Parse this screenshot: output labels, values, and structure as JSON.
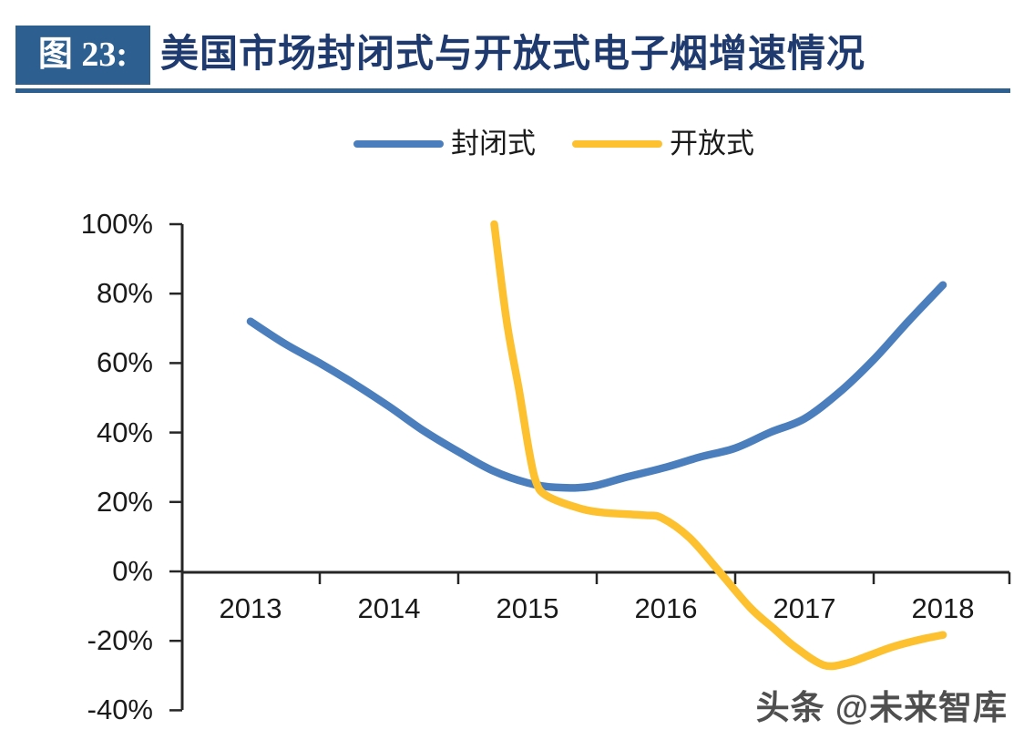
{
  "header": {
    "figure_label": "图 23:",
    "title": "美国市场封闭式与开放式电子烟增速情况"
  },
  "watermark": "头条 @未来智库",
  "colors": {
    "header_blue": "#2d6090",
    "title_text": "#1e3a6e",
    "axis": "#262626",
    "closed_series": "#4b7ebc",
    "open_series": "#fdc02f"
  },
  "chart_data": {
    "type": "line",
    "title": "美国市场封闭式与开放式电子烟增速情况",
    "xlabel": "",
    "ylabel": "",
    "grid": false,
    "legend_position": "top-center",
    "x_axis": {
      "labels": [
        "2013",
        "2014",
        "2015",
        "2016",
        "2017",
        "2018"
      ],
      "range": [
        2012.5,
        2018.5
      ]
    },
    "y_axis": {
      "tick_labels": [
        "100%",
        "80%",
        "60%",
        "40%",
        "20%",
        "0%",
        "-20%",
        "-40%"
      ],
      "tick_values": [
        100,
        80,
        60,
        40,
        20,
        0,
        -20,
        -40
      ],
      "range": [
        -40,
        100
      ],
      "unit": "%"
    },
    "legend": {
      "entries": [
        "封闭式",
        "开放式"
      ]
    },
    "series": [
      {
        "name": "封闭式",
        "color": "#4b7ebc",
        "annual_values_estimated": {
          "2013": 72,
          "2014": 47.5,
          "2015": 25.5,
          "2016": 30,
          "2017": 44,
          "2018": 82.5
        },
        "points": [
          [
            2013.0,
            72
          ],
          [
            2013.25,
            65.5
          ],
          [
            2013.5,
            60
          ],
          [
            2013.75,
            54
          ],
          [
            2014.0,
            47.5
          ],
          [
            2014.25,
            40.5
          ],
          [
            2014.5,
            34.5
          ],
          [
            2014.75,
            29
          ],
          [
            2015.0,
            25.5
          ],
          [
            2015.2,
            24.2
          ],
          [
            2015.45,
            24.4
          ],
          [
            2015.7,
            27
          ],
          [
            2016.0,
            30
          ],
          [
            2016.25,
            33
          ],
          [
            2016.5,
            35.5
          ],
          [
            2016.75,
            40
          ],
          [
            2017.0,
            44
          ],
          [
            2017.25,
            51.5
          ],
          [
            2017.5,
            61
          ],
          [
            2017.75,
            72
          ],
          [
            2018.0,
            82.5
          ]
        ]
      },
      {
        "name": "开放式",
        "color": "#fdc02f",
        "annual_values_estimated": {
          "2015": 30,
          "2016": 15.4,
          "2017": -26.5,
          "2018": -18.3
        },
        "points": [
          [
            2014.76,
            100
          ],
          [
            2014.85,
            72
          ],
          [
            2014.94,
            52
          ],
          [
            2015.01,
            35
          ],
          [
            2015.06,
            26
          ],
          [
            2015.13,
            22
          ],
          [
            2015.34,
            18.6
          ],
          [
            2015.53,
            17
          ],
          [
            2015.84,
            16.2
          ],
          [
            2015.97,
            15.4
          ],
          [
            2016.17,
            9.7
          ],
          [
            2016.39,
            -0.3
          ],
          [
            2016.61,
            -10.5
          ],
          [
            2016.78,
            -16.5
          ],
          [
            2016.93,
            -21.7
          ],
          [
            2017.14,
            -27
          ],
          [
            2017.31,
            -26.4
          ],
          [
            2017.46,
            -24.3
          ],
          [
            2017.64,
            -21.7
          ],
          [
            2017.84,
            -19.6
          ],
          [
            2018.0,
            -18.3
          ]
        ]
      }
    ]
  }
}
